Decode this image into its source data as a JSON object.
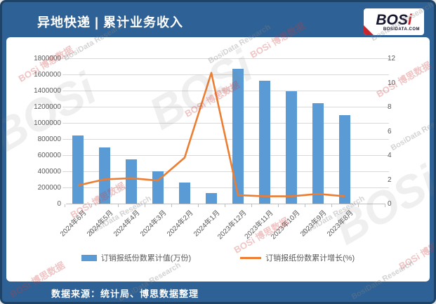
{
  "header": {
    "title": "异地快递 | 累计业务收入",
    "logo": {
      "text_main": "BOS",
      "text_i": "i",
      "subtext": "BOSIDATA.COM"
    }
  },
  "footer": {
    "source": "数据来源：统计局、博思数据整理"
  },
  "watermark": {
    "brand_red": "BOSi 博思数据",
    "brand_gray": "BosiData Research",
    "brand_big": "BOSi"
  },
  "colors": {
    "frame_blue": "#2E6195",
    "frame_border": "#1D4468",
    "bar_blue": "#5B9BD5",
    "line_orange": "#ED7D31",
    "axis_text": "#595959",
    "gridline": "#d9d9d9"
  },
  "chart_data": {
    "type": "bar",
    "title": "异地快递 | 累计业务收入",
    "categories": [
      "2024年6月",
      "2024年5月",
      "2024年4月",
      "2024年3月",
      "2024年2月",
      "2024年1月",
      "2023年12月",
      "2023年11月",
      "2023年10月",
      "2023年9月",
      "2023年8月"
    ],
    "series": [
      {
        "name": "订销报纸份数累计值(万份)",
        "type": "bar",
        "axis": "left",
        "color": "#5B9BD5",
        "values": [
          840000,
          700000,
          550000,
          400000,
          260000,
          130000,
          1670000,
          1520000,
          1390000,
          1240000,
          1100000
        ]
      },
      {
        "name": "订销报纸份数累计增长(%)",
        "type": "line",
        "axis": "right",
        "color": "#ED7D31",
        "values": [
          1.5,
          2.0,
          2.1,
          1.9,
          3.8,
          10.8,
          0.7,
          0.6,
          0.6,
          0.8,
          0.6
        ]
      }
    ],
    "left_axis": {
      "min": 0,
      "max": 1800000,
      "step": 200000
    },
    "right_axis": {
      "min": 0,
      "max": 12,
      "step": 2
    },
    "grid": true,
    "legend_position": "bottom"
  }
}
